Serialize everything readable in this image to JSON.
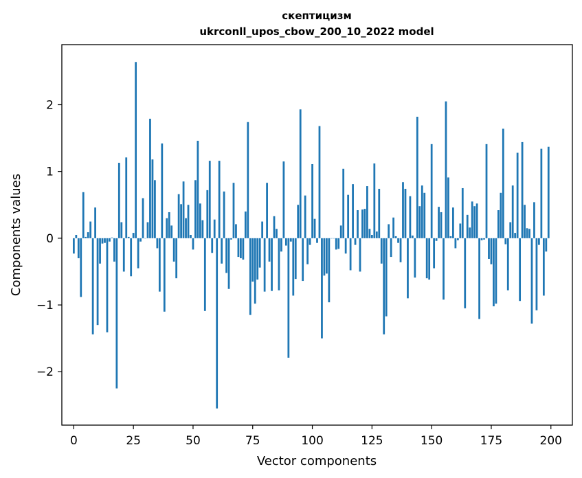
{
  "chart_data": {
    "type": "bar",
    "title": "скептицизм",
    "subtitle": "ukrconll_upos_cbow_200_10_2022 model",
    "xlabel": "Vector components",
    "ylabel": "Components values",
    "xlim": [
      -5,
      209
    ],
    "ylim": [
      -2.8,
      2.9
    ],
    "xticks": [
      0,
      25,
      50,
      75,
      100,
      125,
      150,
      175,
      200
    ],
    "yticks": [
      -2,
      -1,
      0,
      1,
      2
    ],
    "ytick_labels": [
      "−2",
      "−1",
      "0",
      "1",
      "2"
    ],
    "bar_color": "#1f77b4",
    "grid": false,
    "x": [
      0,
      1,
      2,
      3,
      4,
      5,
      6,
      7,
      8,
      9,
      10,
      11,
      12,
      13,
      14,
      15,
      16,
      17,
      18,
      19,
      20,
      21,
      22,
      23,
      24,
      25,
      26,
      27,
      28,
      29,
      30,
      31,
      32,
      33,
      34,
      35,
      36,
      37,
      38,
      39,
      40,
      41,
      42,
      43,
      44,
      45,
      46,
      47,
      48,
      49,
      50,
      51,
      52,
      53,
      54,
      55,
      56,
      57,
      58,
      59,
      60,
      61,
      62,
      63,
      64,
      65,
      66,
      67,
      68,
      69,
      70,
      71,
      72,
      73,
      74,
      75,
      76,
      77,
      78,
      79,
      80,
      81,
      82,
      83,
      84,
      85,
      86,
      87,
      88,
      89,
      90,
      91,
      92,
      93,
      94,
      95,
      96,
      97,
      98,
      99,
      100,
      101,
      102,
      103,
      104,
      105,
      106,
      107,
      108,
      109,
      110,
      111,
      112,
      113,
      114,
      115,
      116,
      117,
      118,
      119,
      120,
      121,
      122,
      123,
      124,
      125,
      126,
      127,
      128,
      129,
      130,
      131,
      132,
      133,
      134,
      135,
      136,
      137,
      138,
      139,
      140,
      141,
      142,
      143,
      144,
      145,
      146,
      147,
      148,
      149,
      150,
      151,
      152,
      153,
      154,
      155,
      156,
      157,
      158,
      159,
      160,
      161,
      162,
      163,
      164,
      165,
      166,
      167,
      168,
      169,
      170,
      171,
      172,
      173,
      174,
      175,
      176,
      177,
      178,
      179,
      180,
      181,
      182,
      183,
      184,
      185,
      186,
      187,
      188,
      189,
      190,
      191,
      192,
      193,
      194,
      195,
      196,
      197,
      198,
      199
    ],
    "values": [
      -0.23,
      0.05,
      -0.3,
      -0.88,
      0.69,
      0.02,
      0.09,
      0.25,
      -1.44,
      0.46,
      -1.3,
      -0.38,
      -0.08,
      -0.07,
      -1.41,
      -0.05,
      0.01,
      -0.35,
      -2.25,
      1.13,
      0.24,
      -0.5,
      1.21,
      0.02,
      -0.57,
      0.08,
      2.64,
      -0.45,
      -0.05,
      0.6,
      0.0,
      0.24,
      1.79,
      1.18,
      0.87,
      -0.15,
      -0.8,
      1.42,
      -1.1,
      0.3,
      0.39,
      0.19,
      -0.35,
      -0.6,
      0.66,
      0.51,
      0.85,
      0.3,
      0.5,
      0.05,
      -0.17,
      0.87,
      1.46,
      0.52,
      0.27,
      -1.09,
      0.72,
      1.16,
      -0.22,
      0.28,
      -2.55,
      1.16,
      -0.38,
      0.7,
      -0.52,
      -0.76,
      -0.02,
      0.83,
      0.21,
      -0.28,
      -0.3,
      -0.32,
      0.4,
      1.74,
      -1.15,
      -0.65,
      -0.98,
      -0.62,
      -0.44,
      0.25,
      -0.8,
      0.83,
      -0.35,
      -0.79,
      0.33,
      0.14,
      -0.78,
      -0.2,
      1.15,
      -0.11,
      -1.79,
      -0.05,
      -0.86,
      -0.61,
      0.5,
      1.93,
      -0.64,
      0.64,
      -0.39,
      -0.1,
      1.11,
      0.29,
      -0.07,
      1.68,
      -1.5,
      -0.56,
      -0.53,
      -0.96,
      0.0,
      0.0,
      -0.17,
      -0.16,
      0.19,
      1.04,
      -0.23,
      0.65,
      -0.48,
      0.81,
      -0.1,
      0.42,
      -0.5,
      0.43,
      0.44,
      0.78,
      0.14,
      0.05,
      1.12,
      0.1,
      0.74,
      -0.38,
      -1.44,
      -1.17,
      0.21,
      -0.28,
      0.31,
      0.03,
      -0.07,
      -0.36,
      0.84,
      0.74,
      -0.9,
      0.63,
      0.04,
      -0.59,
      1.82,
      0.48,
      0.79,
      0.68,
      -0.6,
      -0.62,
      1.41,
      -0.45,
      -0.04,
      0.47,
      0.39,
      -0.92,
      2.05,
      0.91,
      0.03,
      0.46,
      -0.15,
      -0.03,
      0.22,
      0.75,
      -1.05,
      0.35,
      0.16,
      0.55,
      0.48,
      0.52,
      -1.21,
      -0.03,
      -0.02,
      1.41,
      -0.31,
      -0.39,
      -1.02,
      -0.98,
      0.42,
      0.68,
      1.64,
      -0.09,
      -0.78,
      0.24,
      0.79,
      0.08,
      1.28,
      -0.94,
      1.44,
      0.5,
      0.15,
      0.14,
      -1.28,
      0.54,
      -1.08,
      -0.1,
      1.34,
      -0.86,
      -0.2,
      1.37
    ]
  }
}
